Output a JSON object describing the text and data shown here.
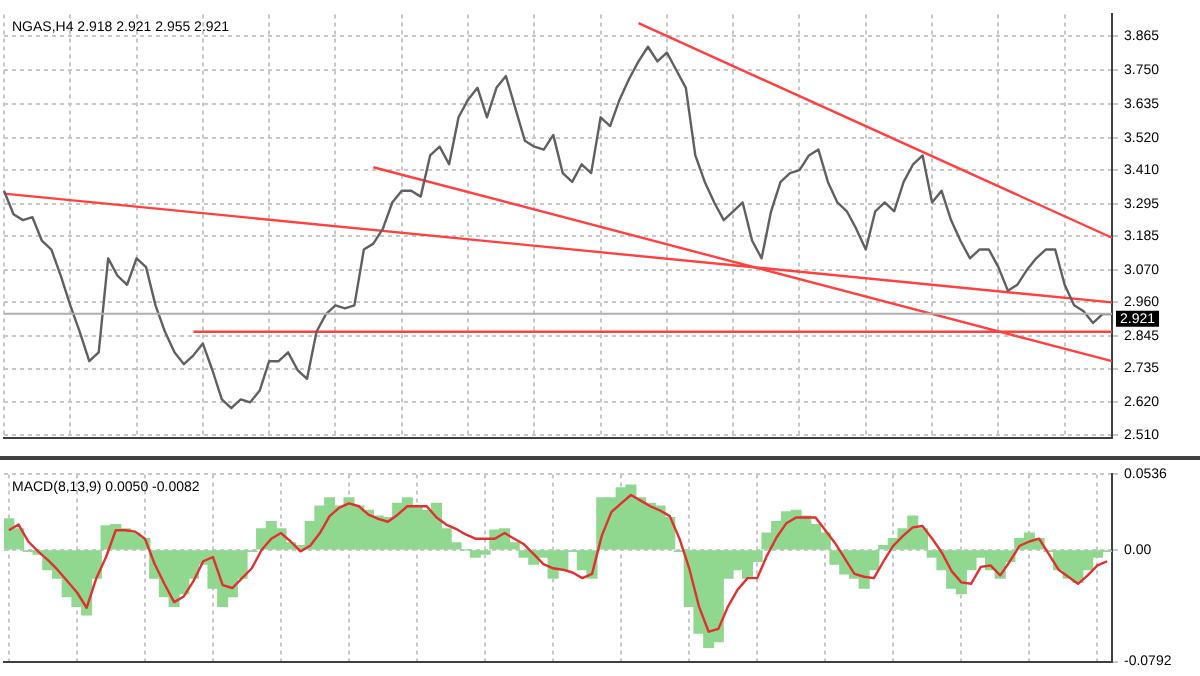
{
  "chart_data": [
    {
      "type": "line",
      "title": "NGAS,H4 2.918 2.921 2.955 2.921",
      "marker": "none",
      "grid": true,
      "tick_labels": "y",
      "ylim": [
        2.5,
        3.94
      ],
      "categories": [
        null,
        null,
        null,
        null,
        null,
        null,
        null,
        null,
        null,
        null,
        null,
        null,
        null,
        null,
        null,
        null,
        null,
        null,
        null,
        null,
        null,
        null,
        null,
        null,
        null,
        null,
        null,
        null,
        null,
        null,
        null,
        null,
        null,
        null,
        null,
        null,
        null,
        null,
        null,
        null,
        null,
        null,
        null,
        null,
        null,
        null,
        null,
        null,
        null,
        null,
        null,
        null,
        null,
        null,
        null,
        null,
        null,
        null,
        null,
        null,
        null,
        null,
        null,
        null,
        null,
        null,
        null,
        null,
        null,
        null,
        null,
        null,
        null,
        null,
        null,
        null,
        null,
        null,
        null,
        null,
        null,
        null,
        null,
        null,
        null,
        null,
        null,
        null,
        null,
        null,
        null,
        null,
        null,
        null,
        null,
        null,
        null,
        null,
        null,
        null,
        null,
        null,
        null,
        null,
        null,
        null,
        null,
        null,
        null,
        null,
        null,
        null,
        null,
        null,
        null,
        null,
        null,
        null
      ],
      "yticks": [
        3.865,
        {
          "value": 3.75,
          "label": "3.750"
        },
        3.635,
        {
          "value": 3.52,
          "label": "3.520"
        },
        {
          "value": 3.41,
          "label": "3.410"
        },
        3.295,
        3.185,
        {
          "value": 3.07,
          "label": "3.070"
        },
        {
          "value": 2.96,
          "label": "2.960"
        },
        2.845,
        2.735,
        {
          "value": 2.62,
          "label": "2.620"
        },
        {
          "value": 2.51,
          "label": "2.510"
        }
      ],
      "ref_lines": [
        {
          "axis": "y",
          "value": 2.921,
          "label": "2.921",
          "color": "#b0b0b0"
        }
      ],
      "series": [
        {
          "color": "#606060",
          "values": [
            3.34,
            3.26,
            3.24,
            3.25,
            3.17,
            3.14,
            3.05,
            2.95,
            2.86,
            2.76,
            2.79,
            3.11,
            3.05,
            3.02,
            3.11,
            3.08,
            2.95,
            2.86,
            2.79,
            2.75,
            2.78,
            2.82,
            2.73,
            2.63,
            2.6,
            2.63,
            2.62,
            2.66,
            2.76,
            2.76,
            2.79,
            2.73,
            2.7,
            2.86,
            2.92,
            2.95,
            2.94,
            2.95,
            3.14,
            3.16,
            3.21,
            3.3,
            3.34,
            3.34,
            3.32,
            3.46,
            3.49,
            3.43,
            3.59,
            3.65,
            3.69,
            3.59,
            3.69,
            3.73,
            3.62,
            3.51,
            3.49,
            3.48,
            3.53,
            3.4,
            3.37,
            3.43,
            3.4,
            3.59,
            3.56,
            3.65,
            3.72,
            3.78,
            3.83,
            3.78,
            3.81,
            3.75,
            3.69,
            3.46,
            3.37,
            3.3,
            3.24,
            3.27,
            3.3,
            3.17,
            3.11,
            3.27,
            3.37,
            3.4,
            3.41,
            3.46,
            3.48,
            3.37,
            3.3,
            3.27,
            3.21,
            3.14,
            3.27,
            3.3,
            3.27,
            3.37,
            3.43,
            3.46,
            3.3,
            3.34,
            3.24,
            3.17,
            3.11,
            3.14,
            3.14,
            3.08,
            3.0,
            3.02,
            3.07,
            3.11,
            3.14,
            3.14,
            3.02,
            2.95,
            2.93,
            2.89,
            2.92,
            2.92
          ]
        },
        {
          "color": "#ff4040",
          "values": [
            3.33,
            null,
            null,
            null,
            null,
            null,
            null,
            null,
            null,
            null,
            null,
            null,
            null,
            null,
            null,
            null,
            null,
            null,
            null,
            null,
            null,
            null,
            null,
            null,
            null,
            null,
            null,
            null,
            null,
            null,
            null,
            null,
            null,
            null,
            null,
            null,
            null,
            null,
            null,
            null,
            null,
            null,
            null,
            null,
            null,
            null,
            null,
            null,
            null,
            null,
            null,
            null,
            null,
            null,
            null,
            null,
            null,
            null,
            null,
            null,
            null,
            null,
            null,
            null,
            null,
            null,
            null,
            null,
            null,
            null,
            null,
            null,
            null,
            null,
            null,
            null,
            null,
            null,
            null,
            null,
            null,
            null,
            null,
            null,
            null,
            null,
            null,
            null,
            null,
            null,
            null,
            null,
            null,
            null,
            null,
            null,
            null,
            null,
            null,
            null,
            null,
            null,
            null,
            null,
            null,
            null,
            null,
            null,
            null,
            null,
            null,
            null,
            null,
            null,
            null,
            null,
            null,
            2.96
          ]
        },
        {
          "color": "#ff4040",
          "values": [
            null,
            null,
            null,
            null,
            null,
            null,
            null,
            null,
            null,
            null,
            null,
            null,
            null,
            null,
            null,
            null,
            null,
            null,
            null,
            null,
            null,
            null,
            null,
            null,
            null,
            null,
            null,
            null,
            null,
            null,
            null,
            null,
            null,
            null,
            null,
            null,
            null,
            null,
            null,
            3.42,
            null,
            null,
            null,
            null,
            null,
            null,
            null,
            null,
            null,
            null,
            null,
            null,
            null,
            null,
            null,
            null,
            null,
            null,
            null,
            null,
            null,
            null,
            null,
            null,
            null,
            null,
            null,
            null,
            null,
            null,
            null,
            null,
            null,
            null,
            null,
            null,
            null,
            null,
            null,
            null,
            null,
            null,
            null,
            null,
            null,
            null,
            null,
            null,
            null,
            null,
            null,
            null,
            null,
            null,
            null,
            null,
            null,
            null,
            null,
            null,
            null,
            null,
            null,
            null,
            null,
            null,
            null,
            null,
            null,
            null,
            null,
            null,
            null,
            null,
            null,
            null,
            null,
            2.76
          ]
        },
        {
          "color": "#ff4040",
          "values": [
            null,
            null,
            null,
            null,
            null,
            null,
            null,
            null,
            null,
            null,
            null,
            null,
            null,
            null,
            null,
            null,
            null,
            null,
            null,
            null,
            2.86,
            null,
            null,
            null,
            null,
            null,
            null,
            null,
            null,
            null,
            null,
            null,
            null,
            null,
            null,
            null,
            null,
            null,
            null,
            null,
            null,
            null,
            null,
            null,
            null,
            null,
            null,
            null,
            null,
            null,
            null,
            null,
            null,
            null,
            null,
            null,
            null,
            null,
            null,
            null,
            null,
            null,
            null,
            null,
            null,
            null,
            null,
            null,
            null,
            null,
            null,
            null,
            null,
            null,
            null,
            null,
            null,
            null,
            null,
            null,
            null,
            null,
            null,
            null,
            null,
            null,
            null,
            null,
            null,
            null,
            null,
            null,
            null,
            null,
            null,
            null,
            null,
            null,
            null,
            null,
            null,
            null,
            null,
            null,
            null,
            null,
            null,
            null,
            null,
            null,
            null,
            null,
            null,
            null,
            null,
            null,
            null,
            2.86
          ]
        },
        {
          "color": "#ff4040",
          "values": [
            null,
            null,
            null,
            null,
            null,
            null,
            null,
            null,
            null,
            null,
            null,
            null,
            null,
            null,
            null,
            null,
            null,
            null,
            null,
            null,
            null,
            null,
            null,
            null,
            null,
            null,
            null,
            null,
            null,
            null,
            null,
            null,
            null,
            null,
            null,
            null,
            null,
            null,
            null,
            null,
            null,
            null,
            null,
            null,
            null,
            null,
            null,
            null,
            null,
            null,
            null,
            null,
            null,
            null,
            null,
            null,
            null,
            null,
            null,
            null,
            null,
            null,
            null,
            null,
            null,
            null,
            null,
            3.91,
            null,
            null,
            null,
            null,
            null,
            null,
            null,
            null,
            null,
            null,
            null,
            null,
            null,
            null,
            null,
            null,
            null,
            null,
            null,
            null,
            null,
            null,
            null,
            null,
            null,
            null,
            null,
            null,
            null,
            null,
            null,
            null,
            null,
            null,
            null,
            null,
            null,
            null,
            null,
            null,
            null,
            null,
            null,
            null,
            null,
            null,
            null,
            null,
            null,
            3.18
          ]
        }
      ]
    },
    {
      "type": "bar",
      "title": "MACD(8,13,9) 0.0050 -0.0082",
      "marker": "none",
      "grid": true,
      "tick_labels": "y",
      "ylim": [
        -0.0792,
        0.0536
      ],
      "categories": [
        null,
        null,
        null,
        null,
        null,
        null,
        null,
        null,
        null,
        null,
        null,
        null,
        null,
        null,
        null,
        null,
        null,
        null,
        null,
        null,
        null,
        null,
        null,
        null,
        null,
        null,
        null,
        null,
        null,
        null,
        null,
        null,
        null,
        null,
        null,
        null,
        null,
        null,
        null,
        null,
        null,
        null,
        null,
        null,
        null,
        null,
        null,
        null,
        null,
        null,
        null,
        null,
        null,
        null,
        null,
        null,
        null,
        null,
        null,
        null,
        null,
        null,
        null,
        null,
        null,
        null,
        null,
        null,
        null,
        null,
        null,
        null,
        null,
        null,
        null,
        null,
        null,
        null,
        null,
        null,
        null,
        null,
        null,
        null,
        null,
        null,
        null,
        null,
        null,
        null,
        null,
        null,
        null,
        null,
        null,
        null,
        null,
        null,
        null,
        null,
        null,
        null,
        null,
        null,
        null,
        null,
        null,
        null,
        null,
        null,
        null,
        null,
        null,
        null
      ],
      "yticks": [
        0.0536,
        {
          "value": 0,
          "label": "0.00"
        },
        -0.0792
      ],
      "series": [
        {
          "type": "bar",
          "color": "#90d890",
          "values": [
            0.022,
            0.015,
            -0.001,
            -0.003,
            -0.014,
            -0.02,
            -0.033,
            -0.04,
            -0.046,
            -0.02,
            0.017,
            0.018,
            0.015,
            0.012,
            0.008,
            -0.02,
            -0.033,
            -0.04,
            -0.031,
            -0.02,
            -0.01,
            -0.027,
            -0.04,
            -0.033,
            -0.02,
            -0.001,
            0.015,
            0.02,
            0.015,
            0.005,
            0.003,
            0.02,
            0.031,
            0.037,
            0.031,
            0.037,
            0.031,
            0.028,
            0.024,
            0.023,
            0.033,
            0.037,
            0.031,
            0.028,
            0.033,
            0.015,
            0.005,
            0,
            -0.005,
            -0.003,
            0.014,
            0.015,
            0.005,
            -0.005,
            -0.01,
            -0.005,
            -0.02,
            -0.014,
            -0.001,
            -0.014,
            -0.02,
            0.037,
            0.037,
            0.044,
            0.046,
            0.037,
            0.033,
            0.031,
            0.023,
            -0.001,
            -0.04,
            -0.059,
            -0.069,
            -0.065,
            -0.02,
            -0.014,
            -0.02,
            -0.008,
            0.012,
            0.02,
            0.027,
            0.028,
            0.024,
            0.018,
            0.012,
            -0.01,
            -0.017,
            -0.02,
            -0.027,
            -0.014,
            0.003,
            0.008,
            0.015,
            0.024,
            0.015,
            -0.005,
            -0.014,
            -0.027,
            -0.031,
            -0.014,
            -0.005,
            -0.014,
            -0.02,
            -0.008,
            0.008,
            0.012,
            0.008,
            -0.001,
            -0.014,
            -0.02,
            -0.023,
            -0.014,
            -0.005,
            -0.001
          ]
        },
        {
          "type": "line",
          "color": "#e03030",
          "values": [
            0.014,
            0.018,
            0.006,
            -0.001,
            -0.007,
            -0.014,
            -0.022,
            -0.03,
            -0.041,
            -0.02,
            -0.005,
            0.014,
            0.014,
            0.013,
            0.008,
            -0.01,
            -0.024,
            -0.037,
            -0.033,
            -0.022,
            -0.008,
            -0.005,
            -0.025,
            -0.027,
            -0.02,
            -0.013,
            0.0,
            0.008,
            0.012,
            0.006,
            -0.001,
            0.003,
            0.012,
            0.024,
            0.03,
            0.033,
            0.031,
            0.025,
            0.022,
            0.02,
            0.025,
            0.031,
            0.031,
            0.031,
            0.023,
            0.018,
            0.015,
            0.011,
            0.008,
            0.008,
            0.008,
            0.012,
            0.008,
            0.004,
            -0.003,
            -0.01,
            -0.013,
            -0.014,
            -0.016,
            -0.02,
            -0.017,
            0.01,
            0.027,
            0.033,
            0.039,
            0.035,
            0.031,
            0.028,
            0.024,
            0.008,
            -0.013,
            -0.04,
            -0.058,
            -0.056,
            -0.04,
            -0.028,
            -0.02,
            -0.02,
            -0.004,
            0.009,
            0.019,
            0.023,
            0.023,
            0.023,
            0.014,
            0.005,
            -0.006,
            -0.017,
            -0.019,
            -0.02,
            -0.008,
            0.003,
            0.01,
            0.016,
            0.017,
            0.008,
            -0.002,
            -0.015,
            -0.023,
            -0.024,
            -0.012,
            -0.011,
            -0.018,
            -0.008,
            0.003,
            0.006,
            0.008,
            -0.003,
            -0.014,
            -0.019,
            -0.024,
            -0.018,
            -0.011,
            -0.008
          ]
        }
      ]
    }
  ]
}
